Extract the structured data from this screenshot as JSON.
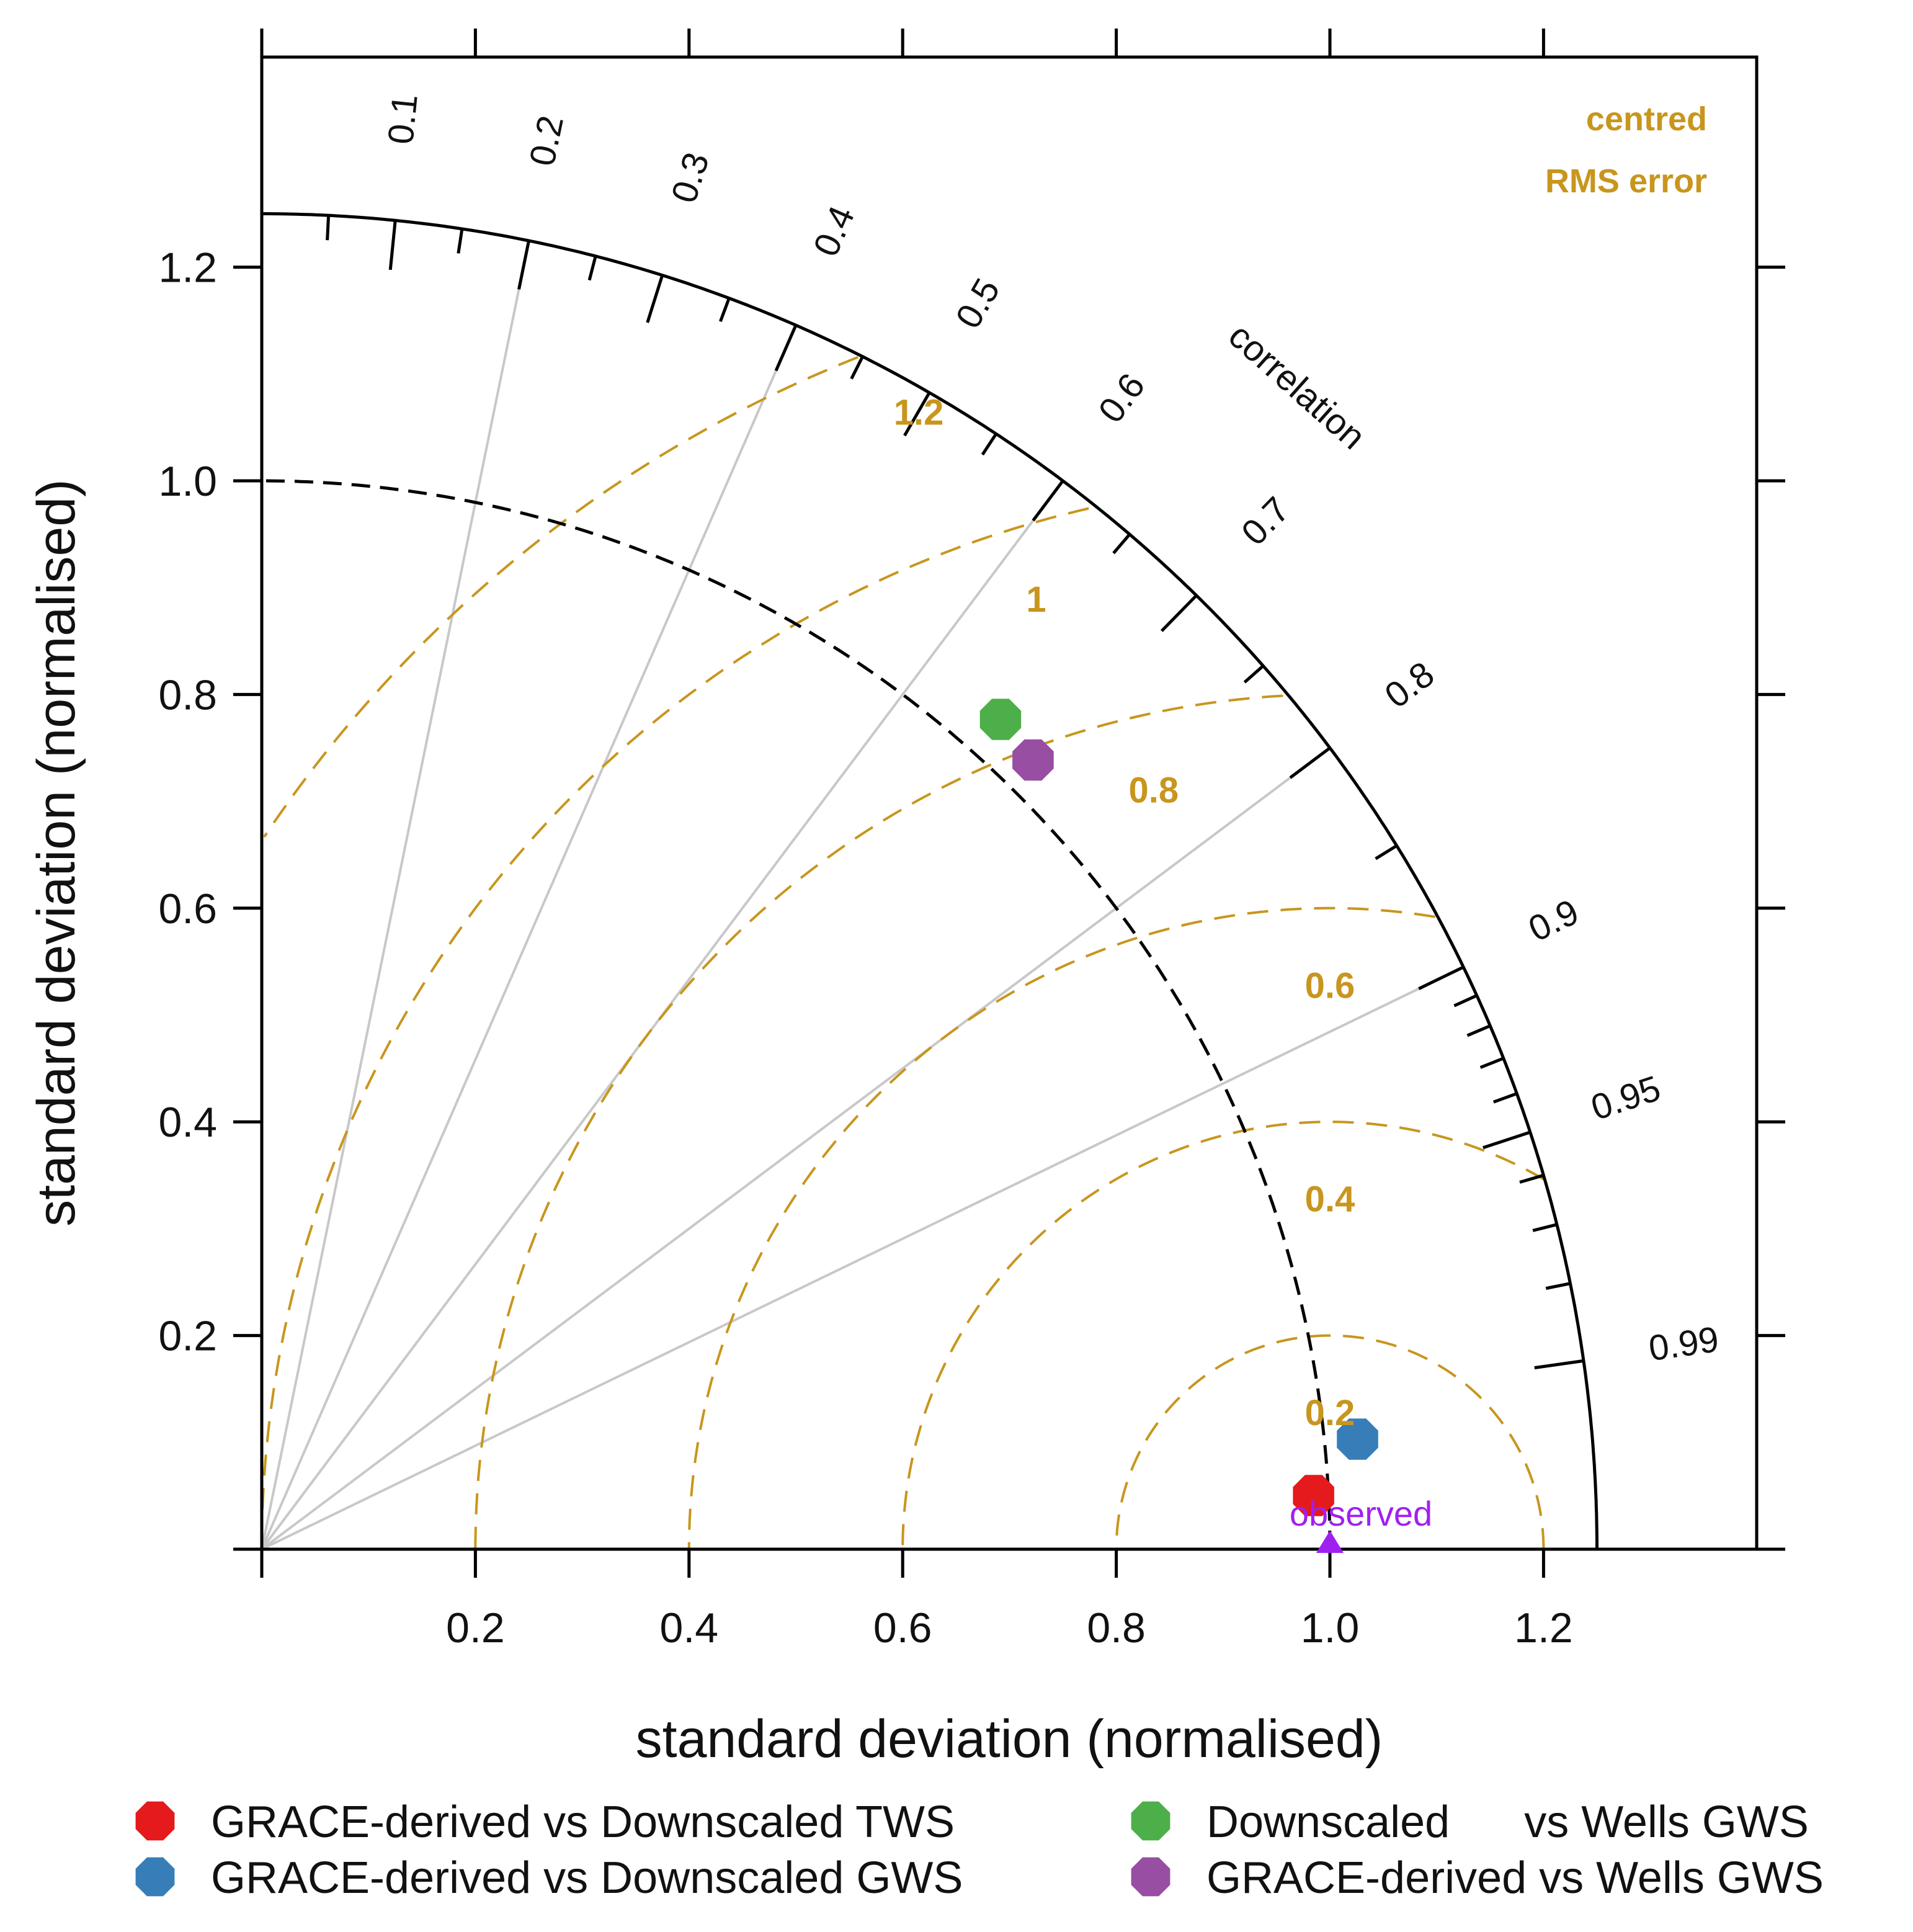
{
  "chart_data": {
    "type": "scatter",
    "subtype": "taylor_diagram",
    "xlabel": "standard deviation (normalised)",
    "ylabel": "standard deviation (normalised)",
    "xlim": [
      0,
      1.4
    ],
    "ylim": [
      0,
      1.4
    ],
    "x_ticks": [
      "0.2",
      "0.4",
      "0.6",
      "0.8",
      "1.0",
      "1.2"
    ],
    "y_ticks": [
      "0.2",
      "0.4",
      "0.6",
      "0.8",
      "1.0",
      "1.2"
    ],
    "max_sd": 1.25,
    "reference_sd": 1.0,
    "correlation_title": "correlation",
    "correlation_labels": [
      "0.1",
      "0.2",
      "0.3",
      "0.4",
      "0.5",
      "0.6",
      "0.7",
      "0.8",
      "0.9",
      "0.95",
      "0.99"
    ],
    "rms_title_line1": "centred",
    "rms_title_line2": "RMS error",
    "rms_levels": [
      "0.2",
      "0.4",
      "0.6",
      "0.8",
      "1",
      "1.2"
    ],
    "rms_color": "#C8961E",
    "observed": {
      "label": "observed",
      "sd": 1.0,
      "color": "#A020F0"
    },
    "series": [
      {
        "name": "GRACE-derived vs Downscaled TWS",
        "sd": 0.986,
        "correlation": 0.9987,
        "color": "#E41A1C"
      },
      {
        "name": "GRACE-derived vs Downscaled GWS",
        "sd": 1.031,
        "correlation": 0.995,
        "color": "#377EB8"
      },
      {
        "name": "Downscaled      vs Wells GWS",
        "sd": 1.04,
        "correlation": 0.665,
        "color": "#4DAF4A"
      },
      {
        "name": "GRACE-derived vs Wells GWS",
        "sd": 1.033,
        "correlation": 0.699,
        "color": "#984EA3"
      }
    ]
  }
}
